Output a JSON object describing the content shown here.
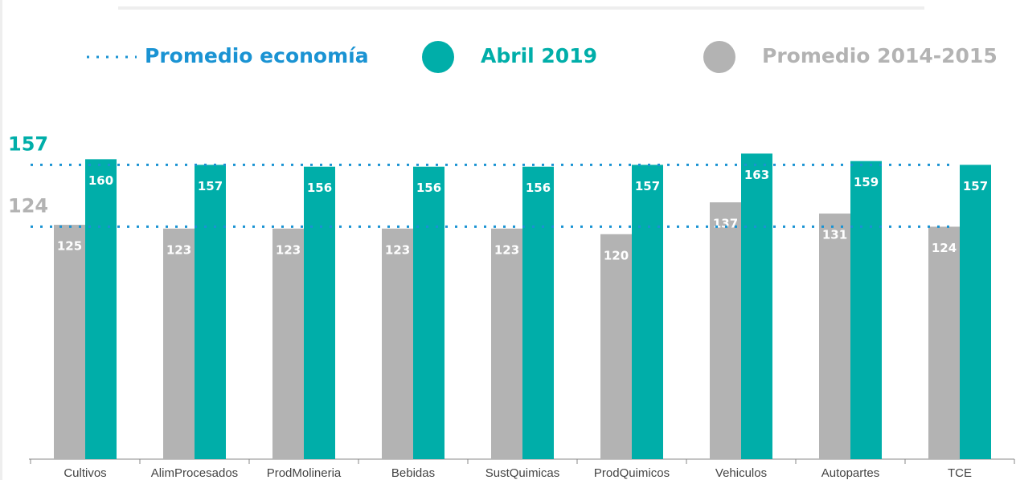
{
  "chart_data": {
    "type": "bar",
    "categories": [
      "Cultivos",
      "AlimProcesados",
      "ProdMolineria",
      "Bebidas",
      "SustQuimicas",
      "ProdQuimicos",
      "Vehiculos",
      "Autopartes",
      "TCE"
    ],
    "series": [
      {
        "name": "Promedio 2014-2015",
        "color": "#b3b3b3",
        "values": [
          125,
          123,
          123,
          123,
          123,
          120,
          137,
          131,
          124
        ]
      },
      {
        "name": "Abril 2019",
        "color": "#00aea9",
        "values": [
          160,
          157,
          156,
          156,
          156,
          157,
          163,
          159,
          157
        ]
      }
    ],
    "reference_lines": {
      "name": "Promedio economía",
      "color": "#1a93d3",
      "values": [
        157,
        124
      ],
      "label_colors": [
        "#00aea9",
        "#b3b3b3"
      ]
    },
    "ylim": [
      0,
      170
    ]
  }
}
